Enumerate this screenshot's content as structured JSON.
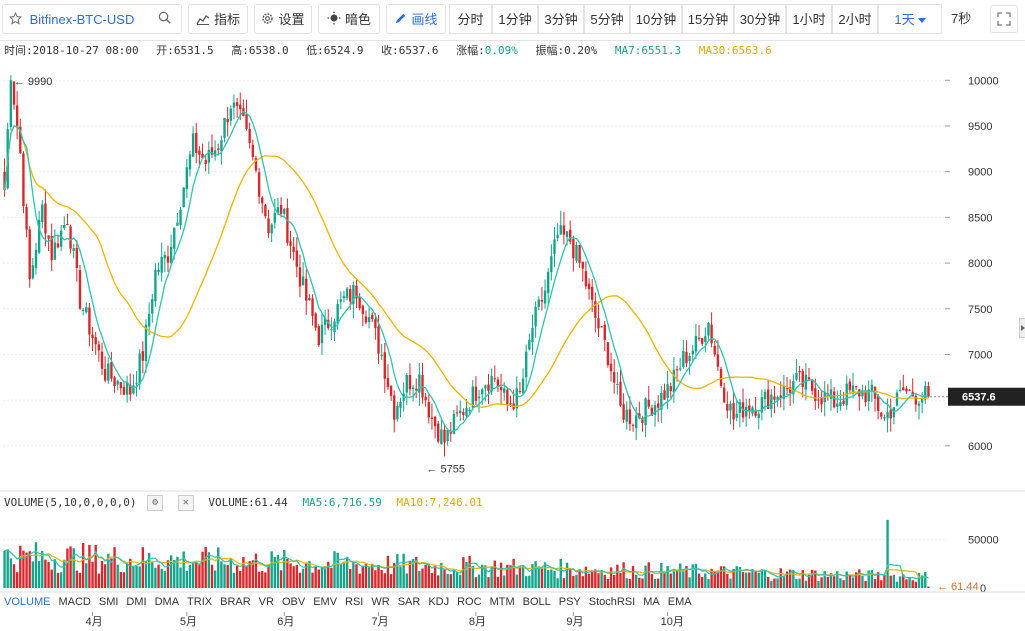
{
  "toolbar": {
    "symbol": "Bitfinex-BTC-USD",
    "indicators_label": "指标",
    "settings_label": "设置",
    "dark_label": "暗色",
    "draw_label": "画线",
    "periods": [
      "分时",
      "1分钟",
      "3分钟",
      "5分钟",
      "10分钟",
      "15分钟",
      "30分钟",
      "1小时",
      "2小时",
      "1天"
    ],
    "active_period": "1天",
    "clock": "7秒"
  },
  "info": {
    "time": "时间:2018-10-27 08:00",
    "open": "开:6531.5",
    "high": "高:6538.0",
    "low": "低:6524.9",
    "close": "收:6537.6",
    "change": "涨幅:",
    "change_val": "0.09%",
    "amplitude": "振幅:0.20%",
    "ma7": "MA7:6551.3",
    "ma30": "MA30:6563.6"
  },
  "volume_info": {
    "label": "VOLUME(5,10,0,0,0,0)",
    "volume": "VOLUME:61.44",
    "ma5": "MA5:6,716.59",
    "ma10": "MA10:7,246.01"
  },
  "indicator_tabs": [
    "VOLUME",
    "MACD",
    "SMI",
    "DMI",
    "DMA",
    "TRIX",
    "BRAR",
    "VR",
    "OBV",
    "EMV",
    "RSI",
    "WR",
    "SAR",
    "KDJ",
    "ROC",
    "MTM",
    "BOLL",
    "PSY",
    "StochRSI",
    "MA",
    "EMA"
  ],
  "active_indicator": "VOLUME",
  "colors": {
    "up": "#12a58b",
    "down": "#d8282c",
    "ma7": "#2ec4b0",
    "ma30": "#f0b400",
    "accent": "#2a6fd6"
  },
  "chart_data": {
    "type": "candlestick",
    "price_axis": {
      "ticks": [
        "10000",
        "9500",
        "9000",
        "8500",
        "8000",
        "7500",
        "7000",
        "6000"
      ],
      "ylim": [
        5550,
        10200
      ]
    },
    "volume_axis": {
      "ticks": [
        "50000",
        "0"
      ],
      "ylim": [
        0,
        75000
      ]
    },
    "x_ticks": [
      "4月",
      "5月",
      "6月",
      "7月",
      "8月",
      "9月",
      "10月"
    ],
    "last_price": "6537.6",
    "last_volume": "61.44",
    "high_marker": "9990",
    "low_marker": "5755",
    "anchors": [
      [
        0,
        8800
      ],
      [
        2,
        10100
      ],
      [
        5,
        9200
      ],
      [
        8,
        7800
      ],
      [
        12,
        8600
      ],
      [
        15,
        8100
      ],
      [
        20,
        8500
      ],
      [
        24,
        7600
      ],
      [
        28,
        7200
      ],
      [
        32,
        6800
      ],
      [
        36,
        6700
      ],
      [
        40,
        6600
      ],
      [
        44,
        7000
      ],
      [
        48,
        7900
      ],
      [
        52,
        8100
      ],
      [
        56,
        8700
      ],
      [
        60,
        9300
      ],
      [
        64,
        9100
      ],
      [
        68,
        9300
      ],
      [
        72,
        9750
      ],
      [
        76,
        9500
      ],
      [
        80,
        9000
      ],
      [
        84,
        8400
      ],
      [
        88,
        8600
      ],
      [
        92,
        8100
      ],
      [
        96,
        7600
      ],
      [
        100,
        7200
      ],
      [
        104,
        7400
      ],
      [
        108,
        7600
      ],
      [
        112,
        7700
      ],
      [
        116,
        7400
      ],
      [
        120,
        7000
      ],
      [
        124,
        6400
      ],
      [
        128,
        6700
      ],
      [
        132,
        6750
      ],
      [
        136,
        6300
      ],
      [
        140,
        6050
      ],
      [
        144,
        6300
      ],
      [
        148,
        6500
      ],
      [
        152,
        6700
      ],
      [
        156,
        6750
      ],
      [
        160,
        6450
      ],
      [
        164,
        6550
      ],
      [
        168,
        7300
      ],
      [
        172,
        7700
      ],
      [
        176,
        8300
      ],
      [
        180,
        8250
      ],
      [
        184,
        7900
      ],
      [
        188,
        7400
      ],
      [
        192,
        7000
      ],
      [
        196,
        6400
      ],
      [
        200,
        6300
      ],
      [
        204,
        6400
      ],
      [
        208,
        6500
      ],
      [
        212,
        6650
      ],
      [
        216,
        6950
      ],
      [
        220,
        7100
      ],
      [
        224,
        7350
      ],
      [
        228,
        6700
      ],
      [
        232,
        6300
      ],
      [
        236,
        6450
      ],
      [
        240,
        6450
      ],
      [
        244,
        6550
      ],
      [
        248,
        6600
      ],
      [
        252,
        6700
      ],
      [
        256,
        6650
      ],
      [
        260,
        6550
      ],
      [
        264,
        6480
      ],
      [
        268,
        6570
      ],
      [
        272,
        6600
      ],
      [
        276,
        6550
      ],
      [
        280,
        6300
      ],
      [
        283,
        6450
      ],
      [
        286,
        6600
      ],
      [
        290,
        6560
      ],
      [
        294,
        6540
      ]
    ]
  }
}
